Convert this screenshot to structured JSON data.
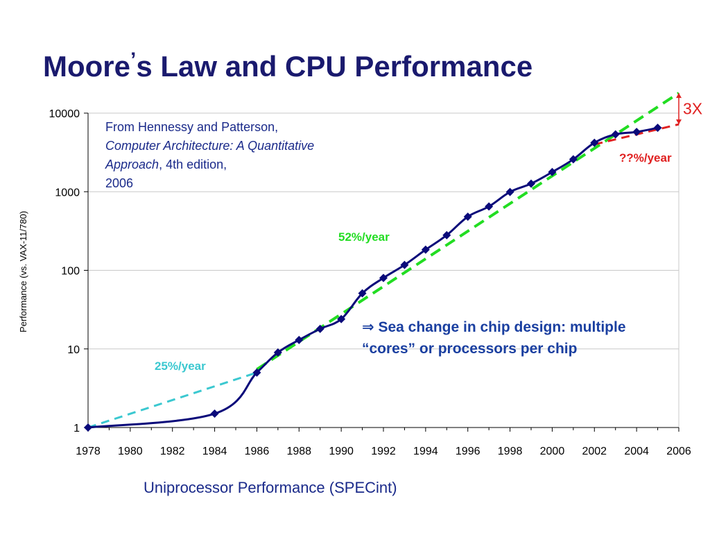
{
  "slide": {
    "title_part1": "Moore",
    "title_apostrophe": "’",
    "title_part2": "s Law and CPU Performance",
    "caption": "Uniprocessor Performance (SPECint)"
  },
  "source_note": {
    "line1": "From Hennessy and Patterson,",
    "book_title": "Computer Architecture: A Quantitative Approach",
    "edition": ", 4th edition,",
    "year": "2006"
  },
  "callout": {
    "arrow": "⇒",
    "line1": "Sea change in chip design: multiple",
    "line2": "“cores” or processors per chip"
  },
  "colors": {
    "title": "#1a1a6e",
    "series": "#0a0a7a",
    "trend_25": "#3bc8d0",
    "trend_52": "#22dd22",
    "trend_future": "#e02020",
    "grid": "#c8c8c8",
    "callout": "#1a3fa0",
    "note": "#1a2a8a"
  },
  "chart_data": {
    "type": "line",
    "ylabel": "Performance (vs. VAX-11/780)",
    "xlabel": "",
    "y_scale": "log",
    "ylim": [
      1,
      10000
    ],
    "xlim": [
      1978,
      2006
    ],
    "x_ticks": [
      1978,
      1980,
      1982,
      1984,
      1986,
      1988,
      1990,
      1992,
      1994,
      1996,
      1998,
      2000,
      2002,
      2004,
      2006
    ],
    "y_ticks": [
      1,
      10,
      100,
      1000,
      10000
    ],
    "grid": true,
    "series": [
      {
        "x": [
          1978,
          1984,
          1986,
          1987,
          1988,
          1989,
          1990,
          1991,
          1992,
          1993,
          1994,
          1995,
          1996,
          1997,
          1998,
          1999,
          2000,
          2001,
          2002,
          2003,
          2004,
          2005
        ],
        "values": [
          1,
          1.5,
          5,
          9,
          13,
          18,
          24,
          51,
          80,
          117,
          183,
          280,
          481,
          649,
          993,
          1267,
          1779,
          2584,
          4195,
          5364,
          5764,
          6505
        ]
      }
    ],
    "trend_lines": [
      {
        "label": "25%/year",
        "x": [
          1978,
          1986
        ],
        "values": [
          1,
          5
        ]
      },
      {
        "label": "52%/year",
        "x": [
          1986,
          2006
        ],
        "values": [
          5.5,
          18000
        ]
      },
      {
        "label": "??%/year",
        "x": [
          2002,
          2006
        ],
        "values": [
          4000,
          7200
        ]
      }
    ],
    "annotations": [
      {
        "text": "3X",
        "type": "gap-bracket",
        "x": 2006
      }
    ]
  }
}
